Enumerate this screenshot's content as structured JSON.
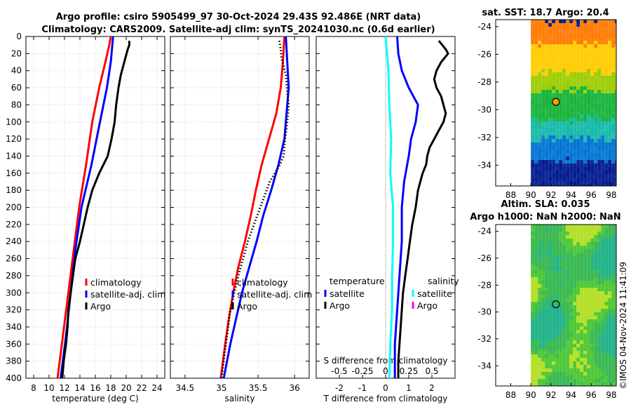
{
  "figure": {
    "title_line1": "Argo profile: csiro 5905499_97 30-Oct-2024 29.43S 92.486E (NRT data)",
    "title_line2": "Climatology: CARS2009. Satellite-adj clim: synTS_20241030.nc (0.6d earlier)",
    "footer": "©IMOS 04-Nov-2024 11:41:09",
    "colors": {
      "climatology": "#ff0000",
      "satellite": "#0000ff",
      "argo": "#000000",
      "cyan": "#00ffff",
      "magenta": "#ff00ff"
    }
  },
  "chart_data": [
    {
      "id": "temperature",
      "type": "line",
      "xlabel": "temperature (deg C)",
      "ylabel": "",
      "xlim": [
        7,
        25
      ],
      "ylim": [
        400,
        0
      ],
      "xticks": [
        8,
        10,
        12,
        14,
        16,
        18,
        20,
        22,
        24
      ],
      "yticks": [
        0,
        20,
        40,
        60,
        80,
        100,
        120,
        140,
        160,
        180,
        200,
        220,
        240,
        260,
        280,
        300,
        320,
        340,
        360,
        380,
        400
      ],
      "grid": true,
      "legend": {
        "position": "right",
        "entries": [
          "climatology",
          "satellite-adj. clim",
          "Argo"
        ]
      },
      "series": [
        {
          "name": "climatology",
          "color": "#ff0000",
          "depth": [
            0,
            10,
            30,
            60,
            100,
            150,
            200,
            250,
            300,
            350,
            400
          ],
          "values": [
            18.0,
            17.8,
            17.3,
            16.5,
            15.6,
            14.8,
            13.9,
            13.2,
            12.5,
            11.8,
            11.1
          ]
        },
        {
          "name": "satellite-adj. clim",
          "color": "#0000ff",
          "depth": [
            0,
            10,
            30,
            60,
            100,
            150,
            200,
            250,
            300,
            350,
            400
          ],
          "values": [
            18.3,
            18.2,
            18.0,
            17.5,
            16.6,
            15.5,
            14.2,
            13.4,
            12.8,
            12.2,
            11.5
          ]
        },
        {
          "name": "Argo",
          "color": "#000000",
          "depth": [
            5,
            10,
            15,
            25,
            35,
            45,
            60,
            80,
            100,
            120,
            140,
            160,
            180,
            200,
            220,
            240,
            260,
            280,
            300,
            320,
            340,
            360,
            380,
            400
          ],
          "values": [
            20.4,
            20.4,
            20.2,
            19.9,
            19.6,
            19.3,
            19.0,
            18.7,
            18.5,
            18.1,
            17.6,
            16.5,
            15.6,
            15.0,
            14.5,
            14.0,
            13.4,
            13.1,
            12.8,
            12.5,
            12.4,
            12.2,
            11.9,
            11.7
          ]
        }
      ]
    },
    {
      "id": "salinity",
      "type": "line",
      "xlabel": "salinity",
      "ylabel": "",
      "xlim": [
        34.3,
        36.2
      ],
      "ylim": [
        400,
        0
      ],
      "xticks": [
        34.5,
        35,
        35.5,
        36
      ],
      "xticklabels": [
        "34.5",
        "35",
        "35.5",
        "36"
      ],
      "grid": true,
      "legend": {
        "position": "right",
        "entries": [
          "climatology",
          "satellite-adj. clim",
          "Argo"
        ]
      },
      "series": [
        {
          "name": "climatology",
          "color": "#ff0000",
          "depth": [
            0,
            30,
            60,
            90,
            120,
            150,
            180,
            210,
            240,
            270,
            300,
            330,
            360,
            400
          ],
          "values": [
            35.86,
            35.84,
            35.81,
            35.75,
            35.65,
            35.55,
            35.47,
            35.4,
            35.32,
            35.23,
            35.16,
            35.1,
            35.05,
            34.99
          ]
        },
        {
          "name": "satellite-adj. clim",
          "color": "#0000ff",
          "depth": [
            0,
            30,
            60,
            90,
            120,
            150,
            180,
            210,
            240,
            270,
            300,
            330,
            360,
            400
          ],
          "values": [
            35.88,
            35.9,
            35.92,
            35.89,
            35.86,
            35.78,
            35.68,
            35.57,
            35.48,
            35.38,
            35.28,
            35.2,
            35.12,
            35.03
          ]
        },
        {
          "name": "Argo",
          "color": "#000000",
          "dotted": true,
          "depth": [
            5,
            15,
            25,
            45,
            65,
            80,
            100,
            120,
            140,
            150,
            170,
            200,
            240,
            280,
            320,
            360,
            400
          ],
          "values": [
            35.79,
            35.81,
            35.82,
            35.88,
            35.9,
            35.92,
            35.9,
            35.87,
            35.85,
            35.8,
            35.66,
            35.53,
            35.36,
            35.23,
            35.12,
            35.06,
            35.0
          ]
        }
      ]
    },
    {
      "id": "difference",
      "type": "line",
      "xlabel": "T difference from climatology",
      "xlim": [
        -3,
        3
      ],
      "ylim": [
        400,
        0
      ],
      "xticks": [
        -2,
        -1,
        0,
        1,
        2
      ],
      "xticklabels": [
        "-2",
        "-1",
        "0",
        "1",
        "2"
      ],
      "top_axis": {
        "label": "S difference from climatology",
        "ticks": [
          "-0.5",
          "-0.25",
          "0",
          "0.25",
          "0.5"
        ],
        "values": [
          -0.5,
          -0.25,
          0,
          0.25,
          0.5
        ]
      },
      "grid": false,
      "legend": {
        "temperature_header": "temperature",
        "salinity_header": "salinity",
        "temperature_entries": [
          "satellite",
          "Argo"
        ],
        "salinity_entries": [
          "satellite",
          "Argo"
        ]
      },
      "series": [
        {
          "name": "T satellite",
          "color": "#0000ff",
          "depth": [
            0,
            20,
            40,
            60,
            80,
            100,
            120,
            140,
            170,
            200,
            240,
            280,
            320,
            360,
            400
          ],
          "values": [
            0.5,
            0.55,
            0.7,
            1.0,
            1.4,
            1.3,
            1.1,
            1.0,
            0.8,
            0.7,
            0.7,
            0.6,
            0.5,
            0.4,
            0.4
          ]
        },
        {
          "name": "T Argo",
          "color": "#000000",
          "depth": [
            5,
            15,
            20,
            30,
            40,
            50,
            60,
            70,
            80,
            90,
            100,
            110,
            120,
            130,
            140,
            150,
            160,
            170,
            180,
            200,
            220,
            240,
            260,
            280,
            300,
            320,
            340,
            360,
            380,
            400
          ],
          "values": [
            2.3,
            2.6,
            2.7,
            2.4,
            2.2,
            2.1,
            2.2,
            2.4,
            2.5,
            2.6,
            2.5,
            2.3,
            2.1,
            1.9,
            1.8,
            1.75,
            1.6,
            1.5,
            1.4,
            1.3,
            1.15,
            1.05,
            0.95,
            0.85,
            0.75,
            0.7,
            0.65,
            0.6,
            0.55,
            0.55
          ]
        },
        {
          "name": "S satellite",
          "color": "#00ffff",
          "depth": [
            0,
            40,
            80,
            120,
            160,
            200,
            240,
            280,
            320,
            360,
            400
          ],
          "values": [
            0.0,
            0.03,
            0.04,
            0.06,
            0.05,
            0.08,
            0.08,
            0.07,
            0.07,
            0.05,
            0.04
          ]
        }
      ]
    },
    {
      "id": "sst_map",
      "type": "heatmap",
      "title": "sat. SST: 18.7 Argo: 20.4",
      "xlim": [
        86.5,
        98.5
      ],
      "ylim": [
        -35.5,
        -23.5
      ],
      "xticks": [
        88,
        90,
        92,
        94,
        96,
        98
      ],
      "yticks": [
        -24,
        -26,
        -28,
        -30,
        -32,
        -34
      ],
      "marker": {
        "lon": 92.486,
        "lat": -29.43,
        "fill": "#ff9900"
      },
      "data_lon_min": 90,
      "color_bands": [
        {
          "lat_from": -23.5,
          "lat_to": -25.2,
          "color": "#ff7a00"
        },
        {
          "lat_from": -25.2,
          "lat_to": -27.2,
          "color": "#ffcc00"
        },
        {
          "lat_from": -27.2,
          "lat_to": -28.5,
          "color": "#9ccc00"
        },
        {
          "lat_from": -28.5,
          "lat_to": -30.6,
          "color": "#16b33a"
        },
        {
          "lat_from": -30.6,
          "lat_to": -32.0,
          "color": "#13b9a8"
        },
        {
          "lat_from": -32.0,
          "lat_to": -33.6,
          "color": "#0073d2"
        },
        {
          "lat_from": -33.6,
          "lat_to": -35.5,
          "color": "#00198f"
        }
      ]
    },
    {
      "id": "sla_map",
      "type": "heatmap",
      "title_line1": "Altim. SLA: 0.035",
      "title_line2": "Argo h1000: NaN h2000: NaN",
      "xlim": [
        86.5,
        98.5
      ],
      "ylim": [
        -35.5,
        -23.5
      ],
      "xticks": [
        88,
        90,
        92,
        94,
        96,
        98
      ],
      "yticks": [
        -24,
        -26,
        -28,
        -30,
        -32,
        -34
      ],
      "marker": {
        "lon": 92.486,
        "lat": -29.43,
        "fill": "none"
      },
      "data_lon_min": 90,
      "base_color": "#3fbf3f"
    }
  ]
}
